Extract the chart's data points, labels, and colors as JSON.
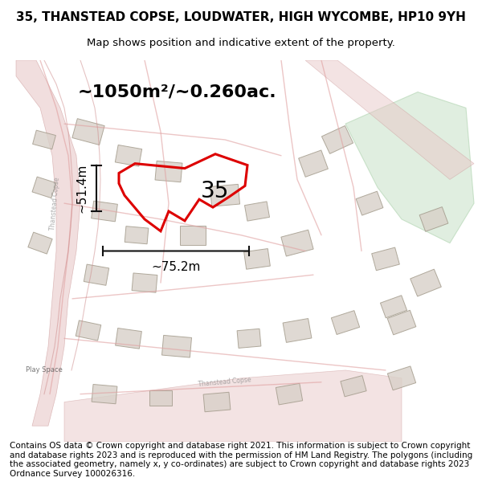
{
  "title_line1": "35, THANSTEAD COPSE, LOUDWATER, HIGH WYCOMBE, HP10 9YH",
  "title_line2": "Map shows position and indicative extent of the property.",
  "area_label": "~1050m²/~0.260ac.",
  "width_label": "~75.2m",
  "height_label": "~51.4m",
  "property_number": "35",
  "footer_text": "Contains OS data © Crown copyright and database right 2021. This information is subject to Crown copyright and database rights 2023 and is reproduced with the permission of HM Land Registry. The polygons (including the associated geometry, namely x, y co-ordinates) are subject to Crown copyright and database rights 2023 Ordnance Survey 100026316.",
  "bg_color": "#f5f5f0",
  "map_bg": "#f0ede8",
  "road_color": "#e8c8c8",
  "building_color": "#d8d0c8",
  "property_outline_color": "#dd0000",
  "green_area_color": "#d4e8d4",
  "dim_line_color": "#111111",
  "title_fontsize": 11,
  "subtitle_fontsize": 9.5,
  "label_fontsize": 16,
  "footer_fontsize": 7.5
}
